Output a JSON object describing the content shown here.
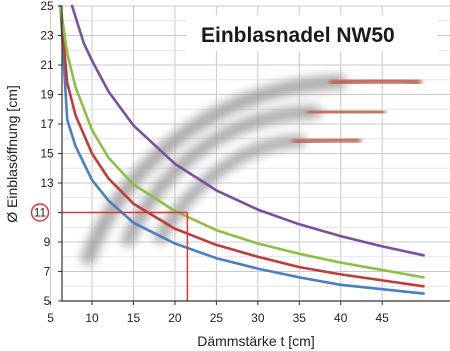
{
  "chart_data": {
    "type": "line",
    "title": "Einblasnadel NW50",
    "xlabel": "Dämmstärke t [cm]",
    "ylabel": "Ø Einblasöffnung [cm]",
    "xlim": [
      5,
      50
    ],
    "ylim": [
      5,
      25
    ],
    "x_ticks": [
      "5",
      "10",
      "15",
      "20",
      "25",
      "30",
      "35",
      "40",
      "45"
    ],
    "y_ticks": [
      "5",
      "7",
      "9",
      "11",
      "13",
      "15",
      "17",
      "19",
      "21",
      "23",
      "25"
    ],
    "grid": true,
    "series": [
      {
        "color": "#4a7fc1",
        "x": [
          6.2,
          7,
          8,
          10,
          12,
          15,
          20,
          25,
          30,
          35,
          40,
          45,
          50
        ],
        "y": [
          25,
          17.3,
          15.5,
          13.2,
          11.8,
          10.3,
          8.9,
          7.9,
          7.2,
          6.6,
          6.1,
          5.8,
          5.5
        ]
      },
      {
        "color": "#c23b3b",
        "x": [
          6.2,
          7,
          8,
          10,
          12,
          15,
          20,
          25,
          30,
          35,
          40,
          45,
          50
        ],
        "y": [
          25,
          19.8,
          17.6,
          15.0,
          13.3,
          11.6,
          9.9,
          8.8,
          8.0,
          7.3,
          6.8,
          6.4,
          6.0
        ]
      },
      {
        "color": "#8cbf45",
        "x": [
          6.2,
          7,
          8,
          10,
          12,
          15,
          20,
          25,
          30,
          35,
          40,
          45,
          50
        ],
        "y": [
          25,
          21.8,
          19.5,
          16.6,
          14.7,
          12.9,
          11.1,
          9.8,
          8.9,
          8.2,
          7.6,
          7.1,
          6.6
        ]
      },
      {
        "color": "#7b4fa0",
        "x": [
          7.6,
          9,
          10,
          12,
          15,
          20,
          25,
          30,
          35,
          40,
          45,
          50
        ],
        "y": [
          25,
          22.5,
          21.3,
          19.2,
          16.9,
          14.3,
          12.5,
          11.2,
          10.2,
          9.4,
          8.7,
          8.1
        ]
      }
    ],
    "annotation": {
      "label": "11",
      "value_y": 11,
      "value_x": 21.5,
      "color": "#d23b3b"
    }
  }
}
